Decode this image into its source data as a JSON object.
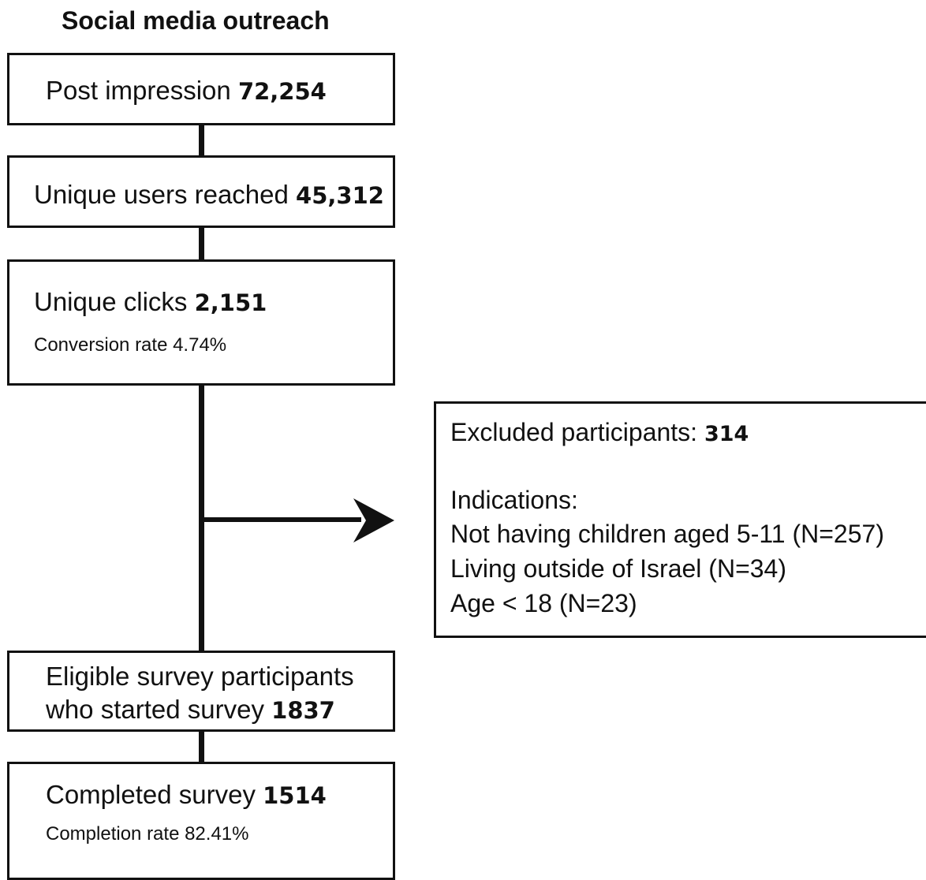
{
  "title": "Social media outreach",
  "boxes": {
    "impressions": {
      "label": "Post impression",
      "value": "72,254"
    },
    "reached": {
      "label": "Unique users reached",
      "value": "45,312"
    },
    "clicks": {
      "label": "Unique clicks",
      "value": "2,151",
      "sub": "Conversion rate 4.74%"
    },
    "eligible": {
      "label_line1": "Eligible survey participants",
      "label_line2": "who started survey",
      "value": "1837"
    },
    "completed": {
      "label": "Completed survey",
      "value": "1514",
      "sub": "Completion rate 82.41%"
    }
  },
  "excluded": {
    "label": "Excluded participants:",
    "value": "314",
    "indications_heading": "Indications:",
    "reasons": [
      "Not having children aged 5-11 (N=257)",
      "Living outside of Israel (N=34)",
      "Age < 18 (N=23)"
    ]
  }
}
